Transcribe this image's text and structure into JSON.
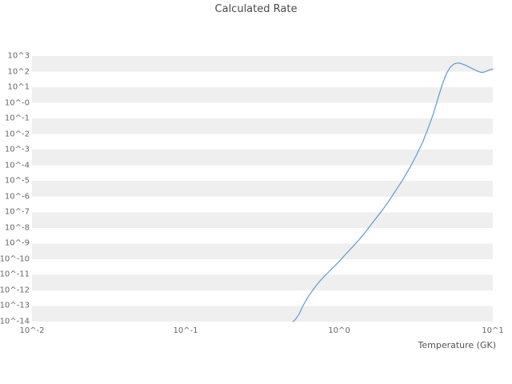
{
  "chart_data": {
    "type": "line",
    "title": "Calculated Rate",
    "xlabel": "Temperature (GK)",
    "ylabel": "",
    "x_scale": "log",
    "y_scale": "log",
    "xlim": [
      0.01,
      10
    ],
    "ylim_log": [
      -14,
      3
    ],
    "grid": "horizontal-bands",
    "legend": "none",
    "x_tick_labels": [
      "10^-2",
      "10^-1",
      "10^0",
      "10^1"
    ],
    "y_tick_labels": [
      "10^3",
      "10^2",
      "10^1",
      "10^-0",
      "10^-1",
      "10^-2",
      "10^-3",
      "10^-4",
      "10^-5",
      "10^-6",
      "10^-7",
      "10^-8",
      "10^-9",
      "10^-10",
      "10^-11",
      "10^-12",
      "10^-13",
      "10^-14"
    ],
    "line_color": "#5b9bd5",
    "band_color": "#efefef",
    "background_color": "#ffffff",
    "series_name": "calculated rate",
    "points_format": "[temperature_GK, log10_rate]",
    "points": [
      [
        0.5,
        -14.0
      ],
      [
        0.52,
        -13.85
      ],
      [
        0.55,
        -13.5
      ],
      [
        0.58,
        -13.0
      ],
      [
        0.62,
        -12.5
      ],
      [
        0.66,
        -12.1
      ],
      [
        0.7,
        -11.75
      ],
      [
        0.75,
        -11.4
      ],
      [
        0.8,
        -11.1
      ],
      [
        0.85,
        -10.85
      ],
      [
        0.9,
        -10.6
      ],
      [
        1.0,
        -10.15
      ],
      [
        1.1,
        -9.7
      ],
      [
        1.2,
        -9.3
      ],
      [
        1.35,
        -8.75
      ],
      [
        1.5,
        -8.2
      ],
      [
        1.7,
        -7.5
      ],
      [
        1.9,
        -6.9
      ],
      [
        2.1,
        -6.3
      ],
      [
        2.3,
        -5.7
      ],
      [
        2.6,
        -4.9
      ],
      [
        2.9,
        -4.1
      ],
      [
        3.2,
        -3.3
      ],
      [
        3.5,
        -2.5
      ],
      [
        3.8,
        -1.6
      ],
      [
        4.1,
        -0.7
      ],
      [
        4.4,
        0.3
      ],
      [
        4.7,
        1.2
      ],
      [
        5.0,
        1.9
      ],
      [
        5.3,
        2.3
      ],
      [
        5.6,
        2.5
      ],
      [
        5.9,
        2.55
      ],
      [
        6.2,
        2.52
      ],
      [
        6.6,
        2.42
      ],
      [
        7.0,
        2.3
      ],
      [
        7.4,
        2.18
      ],
      [
        7.8,
        2.07
      ],
      [
        8.2,
        1.98
      ],
      [
        8.5,
        1.95
      ],
      [
        8.8,
        1.97
      ],
      [
        9.2,
        2.05
      ],
      [
        9.6,
        2.12
      ],
      [
        10.0,
        2.17
      ]
    ]
  }
}
